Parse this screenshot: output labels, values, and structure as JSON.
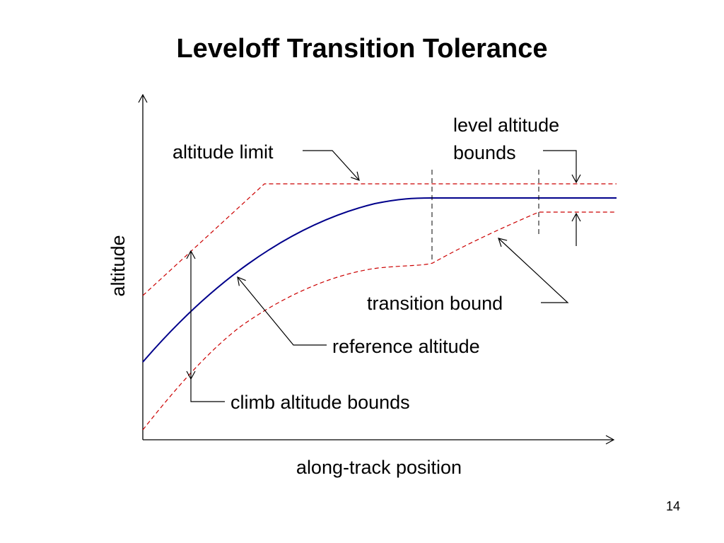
{
  "slide": {
    "title": "Leveloff Transition Tolerance",
    "page_number": "14"
  },
  "diagram": {
    "axis_labels": {
      "y": "altitude",
      "x": "along-track position"
    },
    "annotations": {
      "altitude_limit": "altitude limit",
      "level_bounds_line1": "level altitude",
      "level_bounds_line2": "bounds",
      "transition_bound": "transition bound",
      "reference_altitude": "reference altitude",
      "climb_bounds": "climb altitude bounds"
    },
    "colors": {
      "reference_line": "#00008B",
      "bound_lines": "#CC0000",
      "axes": "#000000",
      "dividers": "#000000"
    }
  }
}
